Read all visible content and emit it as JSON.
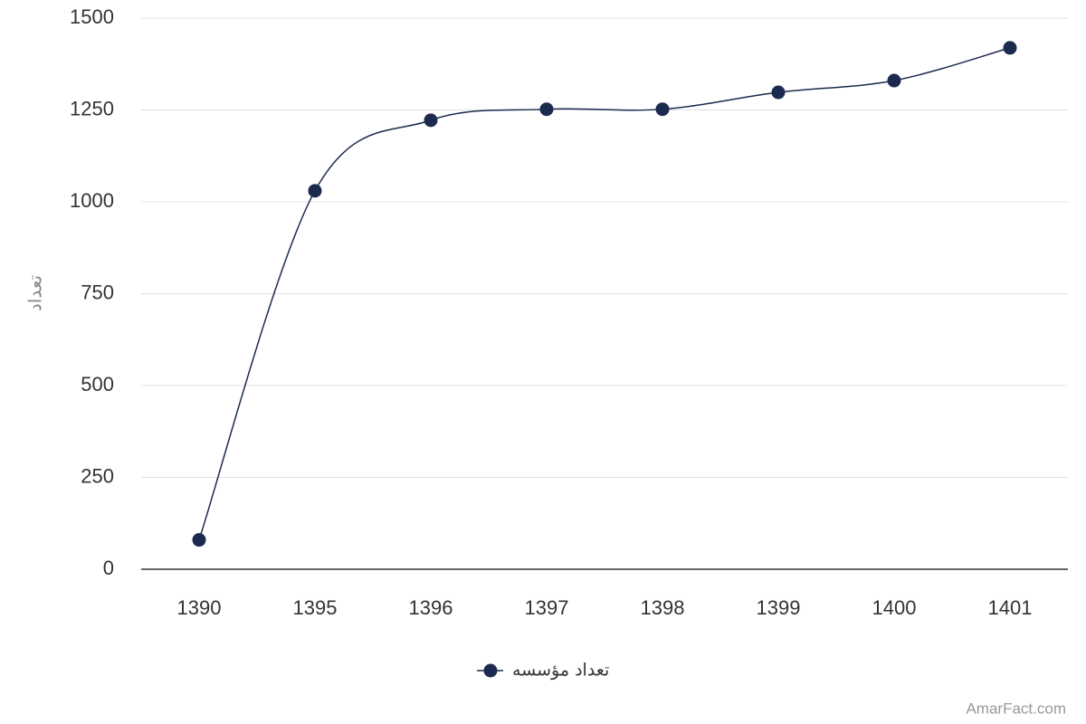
{
  "chart_data": {
    "type": "line",
    "y_label": "تعداد",
    "categories": [
      "1390",
      "1395",
      "1396",
      "1397",
      "1398",
      "1399",
      "1400",
      "1401"
    ],
    "series": [
      {
        "name": "تعداد مؤسسه",
        "color": "#1b2a4e",
        "values": [
          80,
          1030,
          1222,
          1252,
          1252,
          1298,
          1330,
          1419
        ]
      }
    ],
    "ylim": [
      0,
      1500
    ],
    "yticks": [
      0,
      250,
      500,
      750,
      1000,
      1250,
      1500
    ],
    "grid": true,
    "smooth": true,
    "legend": "bottom",
    "watermark": "AmarFact.com"
  }
}
